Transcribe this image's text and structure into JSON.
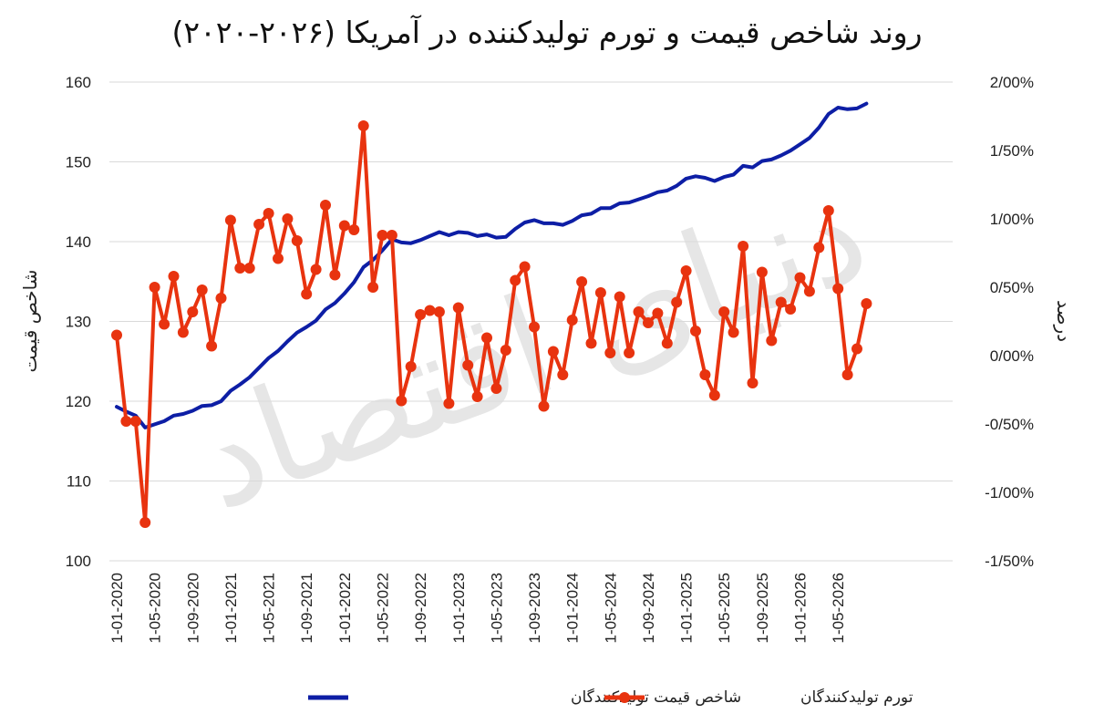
{
  "title": "روند شاخص قیمت و تورم تولیدکننده در آمریکا (۲۰۲۶-۲۰۲۰)",
  "watermark": "دنیای اقتصاد",
  "colors": {
    "index": "#0d1ea5",
    "inflation": "#e8330f",
    "grid": "#d9d9d9"
  },
  "chart_data": {
    "type": "line",
    "title": "روند شاخص قیمت و تورم تولیدکننده در آمریکا (۲۰۲۶-۲۰۲۰)",
    "ylabel": "شاخص قیمت",
    "y2label": "درصد",
    "ylim": [
      100,
      160
    ],
    "y2lim": [
      -1.5,
      2.0
    ],
    "yticks": [
      100,
      110,
      120,
      130,
      140,
      150,
      160
    ],
    "y2ticks": [
      "-1/50%",
      "-1/00%",
      "-0/50%",
      "0/00%",
      "0/50%",
      "1/00%",
      "1/50%",
      "2/00%"
    ],
    "y2tick_values": [
      -1.5,
      -1.0,
      -0.5,
      0.0,
      0.5,
      1.0,
      1.5,
      2.0
    ],
    "grid": true,
    "legend_position": "bottom",
    "x_tick_labels": [
      "1-01-2020",
      "1-05-2020",
      "1-09-2020",
      "1-01-2021",
      "1-05-2021",
      "1-09-2021",
      "1-01-2022",
      "1-05-2022",
      "1-09-2022",
      "1-01-2023",
      "1-05-2023",
      "1-09-2023",
      "1-01-2024",
      "1-05-2024",
      "1-09-2024",
      "1-01-2025",
      "1-05-2025",
      "1-09-2025",
      "1-01-2026",
      "1-05-2026"
    ],
    "x_tick_step": 4,
    "series": [
      {
        "name": "شاخص قیمت تولیدکنندگان",
        "axis": "left",
        "values": [
          119.3,
          118.7,
          118.2,
          116.7,
          117.1,
          117.5,
          118.2,
          118.4,
          118.8,
          119.4,
          119.5,
          120.0,
          121.3,
          122.1,
          123.0,
          124.2,
          125.4,
          126.3,
          127.5,
          128.6,
          129.3,
          130.1,
          131.5,
          132.3,
          133.5,
          134.9,
          136.8,
          137.7,
          138.9,
          140.3,
          139.9,
          139.8,
          140.2,
          140.7,
          141.2,
          140.8,
          141.2,
          141.1,
          140.7,
          140.9,
          140.5,
          140.6,
          141.6,
          142.4,
          142.7,
          142.3,
          142.3,
          142.1,
          142.6,
          143.3,
          143.5,
          144.2,
          144.2,
          144.8,
          144.9,
          145.3,
          145.7,
          146.2,
          146.4,
          147.0,
          147.9,
          148.2,
          148.0,
          147.6,
          148.1,
          148.4,
          149.5,
          149.3,
          150.1,
          150.3,
          150.8,
          151.4,
          152.2,
          153.0,
          154.3,
          156.0,
          156.8,
          156.6,
          156.7,
          157.3
        ]
      },
      {
        "name": "تورم تولیدکنندگان",
        "axis": "right",
        "values": [
          0.15,
          -0.48,
          -0.48,
          -1.22,
          0.5,
          0.23,
          0.58,
          0.17,
          0.32,
          0.48,
          0.07,
          0.42,
          0.99,
          0.64,
          0.64,
          0.96,
          1.04,
          0.71,
          1.0,
          0.84,
          0.45,
          0.63,
          1.1,
          0.59,
          0.95,
          0.92,
          1.68,
          0.5,
          0.88,
          0.88,
          -0.33,
          -0.08,
          0.3,
          0.33,
          0.32,
          -0.35,
          0.35,
          -0.07,
          -0.3,
          0.13,
          -0.24,
          0.04,
          0.55,
          0.65,
          0.21,
          -0.37,
          0.03,
          -0.14,
          0.26,
          0.54,
          0.09,
          0.46,
          0.02,
          0.43,
          0.02,
          0.32,
          0.24,
          0.31,
          0.09,
          0.39,
          0.62,
          0.18,
          -0.14,
          -0.29,
          0.32,
          0.17,
          0.8,
          -0.2,
          0.61,
          0.11,
          0.39,
          0.34,
          0.57,
          0.47,
          0.79,
          1.06,
          0.49,
          -0.14,
          0.05,
          0.38
        ]
      }
    ]
  }
}
